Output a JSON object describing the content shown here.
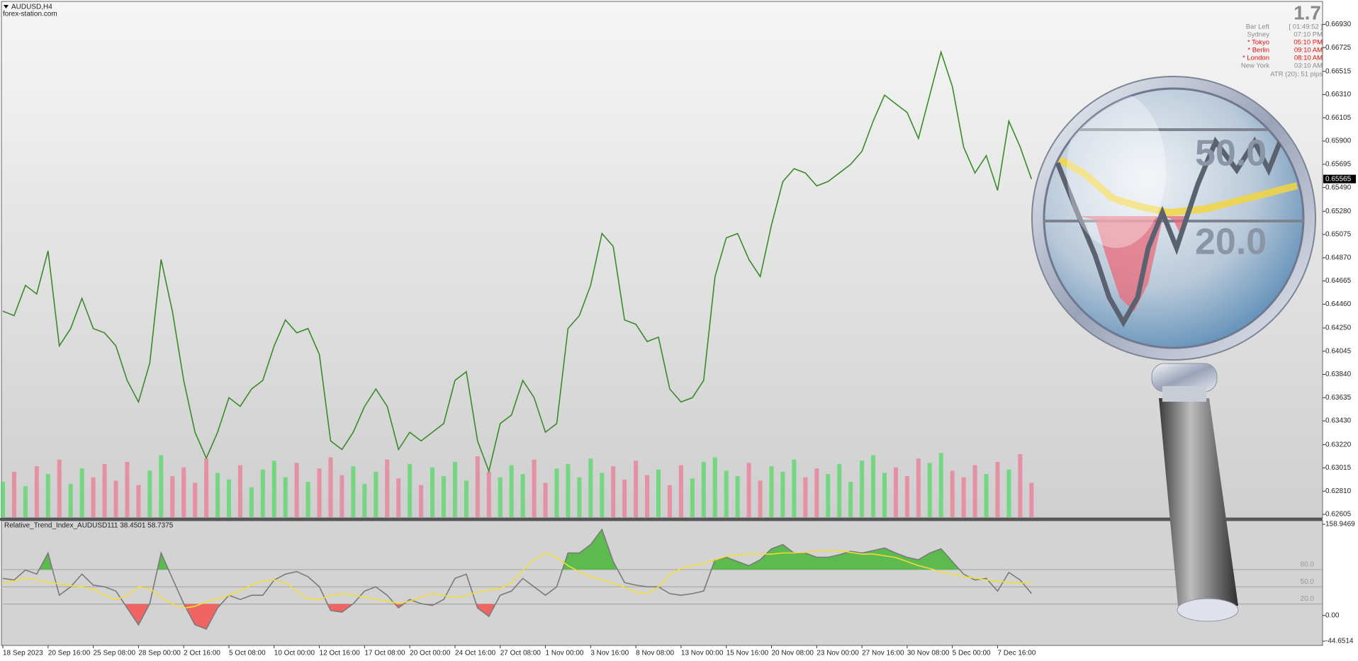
{
  "chart_data": [
    {
      "type": "line",
      "title": "AUDUSD,H4",
      "subtitle": "forex-station.com",
      "color": "#3a8a2a",
      "x": [
        0,
        4,
        8,
        12,
        16,
        20,
        24,
        28,
        32,
        36,
        40,
        44,
        48,
        52,
        56,
        60,
        64,
        68,
        72,
        76,
        80,
        84,
        88,
        92,
        96,
        100,
        104,
        108,
        112,
        116,
        120,
        124,
        128,
        132,
        136,
        140,
        144,
        148,
        152,
        156,
        160,
        164,
        168,
        172,
        176,
        180,
        184,
        188,
        192,
        196,
        200,
        204,
        208,
        212,
        216,
        220,
        224,
        228,
        232,
        236,
        240,
        244,
        248,
        252,
        256,
        260,
        264,
        268,
        272,
        276,
        280,
        284,
        288,
        292,
        296,
        300,
        304,
        308,
        312,
        316,
        320,
        324,
        328,
        332,
        336,
        340,
        344,
        348,
        352,
        356,
        360,
        364
      ],
      "values": [
        0.64398,
        0.64359,
        0.64626,
        0.6455,
        0.64931,
        0.64092,
        0.64245,
        0.64512,
        0.64245,
        0.64207,
        0.64092,
        0.63787,
        0.63597,
        0.6394,
        0.64855,
        0.64398,
        0.63787,
        0.6333,
        0.63101,
        0.6333,
        0.63635,
        0.63558,
        0.63711,
        0.63787,
        0.64092,
        0.64321,
        0.64207,
        0.64245,
        0.64016,
        0.63253,
        0.63177,
        0.6333,
        0.63558,
        0.63711,
        0.63558,
        0.63177,
        0.6333,
        0.63253,
        0.6333,
        0.63406,
        0.63787,
        0.63864,
        0.63253,
        0.62986,
        0.63406,
        0.63482,
        0.63787,
        0.63635,
        0.6333,
        0.63406,
        0.64245,
        0.64359,
        0.64626,
        0.65084,
        0.6497,
        0.64321,
        0.64283,
        0.6413,
        0.64169,
        0.63711,
        0.63597,
        0.63635,
        0.63787,
        0.64703,
        0.65046,
        0.65084,
        0.64855,
        0.64703,
        0.6516,
        0.65542,
        0.65656,
        0.65618,
        0.65504,
        0.65542,
        0.65618,
        0.65694,
        0.65809,
        0.66076,
        0.66305,
        0.66228,
        0.66152,
        0.65923,
        0.66305,
        0.66686,
        0.66381,
        0.65847,
        0.65618,
        0.65771,
        0.65465,
        0.66076,
        0.65847,
        0.65565
      ],
      "volume": [
        3200,
        4100,
        2800,
        4600,
        3900,
        5200,
        3000,
        4400,
        3600,
        4800,
        3300,
        5000,
        2900,
        4200,
        5600,
        3700,
        4500,
        3100,
        5300,
        4000,
        3400,
        4700,
        2700,
        4300,
        5100,
        3600,
        4900,
        3200,
        4400,
        5400,
        3800,
        4600,
        3000,
        4100,
        5200,
        3500,
        4800,
        2900,
        4500,
        3700,
        5000,
        3300,
        5500,
        4100,
        3600,
        4700,
        3900,
        5200,
        3100,
        4400,
        4800,
        3600,
        5300,
        4000,
        4600,
        3400,
        5100,
        3800,
        4300,
        2900,
        4700,
        3500,
        5000,
        5400,
        4200,
        3700,
        4900,
        3300,
        4600,
        4100,
        5200,
        3600,
        4400,
        3900,
        4800,
        3200,
        5100,
        5600,
        4000,
        4500,
        3700,
        5300,
        4900,
        5800,
        4200,
        3600,
        4700,
        3900,
        5000,
        4300,
        5700,
        3100
      ],
      "volume_ylim": [
        0,
        8000
      ],
      "volume_up_color": "#5bd86b",
      "volume_down_color": "#e8809a",
      "current_price": 0.65565,
      "xlim": [
        0,
        467
      ],
      "xticks": [
        {
          "value": 0,
          "label": "18 Sep 2023"
        },
        {
          "value": 16,
          "label": "20 Sep 16:00"
        },
        {
          "value": 32,
          "label": "25 Sep 08:00"
        },
        {
          "value": 48,
          "label": "28 Sep 00:00"
        },
        {
          "value": 64,
          "label": "2 Oct 16:00"
        },
        {
          "value": 80,
          "label": "5 Oct 08:00"
        },
        {
          "value": 96,
          "label": "10 Oct 00:00"
        },
        {
          "value": 112,
          "label": "12 Oct 16:00"
        },
        {
          "value": 128,
          "label": "17 Oct 08:00"
        },
        {
          "value": 144,
          "label": "20 Oct 00:00"
        },
        {
          "value": 160,
          "label": "24 Oct 16:00"
        },
        {
          "value": 176,
          "label": "27 Oct 08:00"
        },
        {
          "value": 192,
          "label": "1 Nov 00:00"
        },
        {
          "value": 208,
          "label": "3 Nov 16:00"
        },
        {
          "value": 224,
          "label": "8 Nov 08:00"
        },
        {
          "value": 240,
          "label": "13 Nov 00:00"
        },
        {
          "value": 256,
          "label": "15 Nov 16:00"
        },
        {
          "value": 272,
          "label": "20 Nov 08:00"
        },
        {
          "value": 288,
          "label": "23 Nov 00:00"
        },
        {
          "value": 304,
          "label": "27 Nov 16:00"
        },
        {
          "value": 320,
          "label": "30 Nov 08:00"
        },
        {
          "value": 336,
          "label": "5 Dec 00:00"
        },
        {
          "value": 352,
          "label": "7 Dec 16:00"
        }
      ],
      "ylim": [
        0.6258,
        0.6712
      ],
      "yticks": [
        {
          "value": 0.6693,
          "label": "0.66930"
        },
        0.66725,
        0.66515,
        {
          "value": 0.6631,
          "label": "0.66310"
        },
        0.66105,
        {
          "value": 0.659,
          "label": "0.65900"
        },
        0.65695,
        {
          "value": 0.6549,
          "label": "0.65490"
        },
        {
          "value": 0.6528,
          "label": "0.65280"
        },
        0.65075,
        {
          "value": 0.6487,
          "label": "0.64870"
        },
        0.64665,
        {
          "value": 0.6446,
          "label": "0.64460"
        },
        {
          "value": 0.6425,
          "label": "0.64250"
        },
        0.64045,
        {
          "value": 0.6384,
          "label": "0.63840"
        },
        0.63635,
        {
          "value": 0.6343,
          "label": "0.63430"
        },
        {
          "value": 0.6322,
          "label": "0.63220"
        },
        0.63015,
        {
          "value": 0.6281,
          "label": "0.62810"
        },
        0.62605
      ]
    },
    {
      "type": "line",
      "title": "Relative_Trend_Index_AUDUSD111 38.4501 58.7375",
      "series": [
        {
          "color": "#7a7a7a",
          "values": [
            64.7,
            61.8,
            79.4,
            72.1,
            108.8,
            35.3,
            50,
            72.1,
            52.9,
            50,
            42.6,
            13.2,
            -16.2,
            20.6,
            108.8,
            64.7,
            20.6,
            -16.2,
            -23.5,
            13.2,
            35.3,
            27.9,
            35.3,
            35.3,
            61.8,
            72.1,
            76.5,
            67.6,
            50,
            8.8,
            5.9,
            20.6,
            42.6,
            50,
            35.3,
            13.2,
            27.9,
            20.6,
            17.6,
            27.9,
            64.7,
            72.1,
            13.2,
            -1.5,
            35.3,
            42.6,
            64.7,
            50,
            35.3,
            50,
            108.8,
            108.8,
            123.5,
            150,
            94.1,
            57.4,
            52.9,
            50,
            50,
            38.2,
            35.3,
            38.2,
            42.6,
            97.1,
            101.5,
            94.1,
            86.8,
            97.1,
            116.2,
            123.5,
            108.8,
            108.8,
            101.5,
            101.5,
            105.9,
            111.8,
            108.8,
            113.2,
            117.6,
            108.8,
            101.5,
            97.1,
            108.8,
            116.2,
            94.1,
            72.1,
            61.8,
            64.7,
            42.6,
            75,
            61.8,
            38.4501
          ]
        },
        {
          "color": "#f2dc3a",
          "values": [
            57,
            60,
            65,
            62,
            58,
            55,
            52,
            50,
            46,
            35,
            28,
            35,
            50,
            47,
            32,
            20,
            13,
            16,
            24,
            29,
            35,
            43,
            53,
            60,
            62,
            57,
            43,
            28,
            28,
            35,
            38,
            35,
            32,
            28,
            25,
            21,
            25,
            32,
            38,
            35,
            31,
            35,
            41,
            44,
            47,
            57,
            79,
            97,
            109,
            101,
            87,
            76,
            68,
            62,
            56,
            49,
            41,
            38,
            50,
            72,
            82,
            87,
            91,
            97,
            103,
            106,
            107,
            107,
            107,
            109,
            109,
            110,
            112,
            113,
            113,
            110,
            107,
            107,
            104,
            101,
            94,
            87,
            82,
            76,
            72,
            68,
            65,
            62,
            60,
            58,
            56,
            58.7375
          ]
        }
      ],
      "levels": [
        {
          "value": 80,
          "label": "80.0",
          "fill_above": "#5cba4e"
        },
        {
          "value": 50,
          "label": "50.0"
        },
        {
          "value": 20,
          "label": "20.0",
          "fill_below": "#f06464"
        }
      ],
      "ylim": [
        -44.6514,
        158.9469
      ],
      "yticks": [
        158.9469,
        {
          "value": 0,
          "label": "0.00"
        },
        -44.6514
      ]
    }
  ],
  "info_panel": {
    "spread": "1.7",
    "rows": [
      {
        "label": "Bar Left",
        "value": "[ 01:49:52 ]",
        "active": false
      },
      {
        "label": "Sydney",
        "value": "07:10 PM",
        "active": false
      },
      {
        "label": "* Tokyo",
        "value": "05:10 PM",
        "active": true
      },
      {
        "label": "* Berlin",
        "value": "09:10 AM",
        "active": true
      },
      {
        "label": "* London",
        "value": "08:10 AM",
        "active": true
      },
      {
        "label": "New York",
        "value": "03:10 AM",
        "active": false
      }
    ],
    "atr": "ATR (20): 51 pips",
    "active_color": "#e81010",
    "idle_color": "#8a8a8a"
  },
  "magnifier": {
    "labels": [
      "50.0",
      "20.0"
    ]
  }
}
